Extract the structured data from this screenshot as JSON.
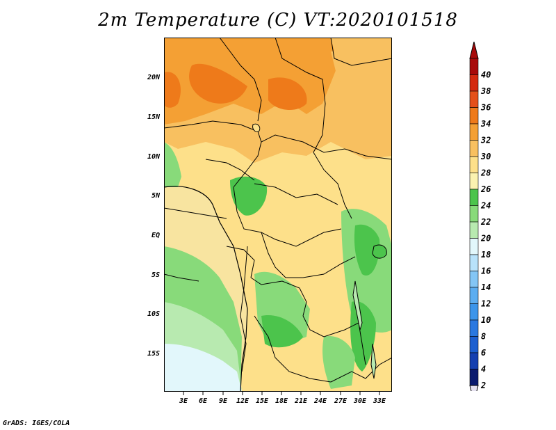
{
  "title": "2m Temperature (C) VT:2020101518",
  "credit": "GrADS: IGES/COLA",
  "axes": {
    "lat_labels": [
      "20N",
      "15N",
      "10N",
      "5N",
      "EQ",
      "5S",
      "10S",
      "15S"
    ],
    "lon_labels": [
      "3E",
      "6E",
      "9E",
      "12E",
      "15E",
      "18E",
      "21E",
      "24E",
      "27E",
      "30E",
      "33E"
    ]
  },
  "colorbar": {
    "levels": [
      "2",
      "4",
      "6",
      "8",
      "10",
      "12",
      "14",
      "16",
      "18",
      "20",
      "22",
      "24",
      "26",
      "28",
      "30",
      "32",
      "34",
      "36",
      "38",
      "40"
    ],
    "colors": [
      "#0a1a6e",
      "#1540b0",
      "#1c5fd0",
      "#2a78e0",
      "#3c95ea",
      "#5cadf0",
      "#84c6f5",
      "#b8e2fa",
      "#e2f7fb",
      "#b8eab0",
      "#88da7a",
      "#4cc44c",
      "#fbf2b0",
      "#fde08a",
      "#f8c060",
      "#f4a034",
      "#ee7a1a",
      "#e4501a",
      "#d42a10",
      "#a80a0a"
    ],
    "below_color": "#e6e2f0",
    "above_color": "#a80a0a"
  },
  "legend_colors": {
    "ocean_cool": "#e2f7fb",
    "ocean_mild": "#b8eab0",
    "land_warm": "#fde08a",
    "land_hot": "#f4a034",
    "land_veryhot": "#ee7a1a",
    "highland": "#4cc44c"
  }
}
